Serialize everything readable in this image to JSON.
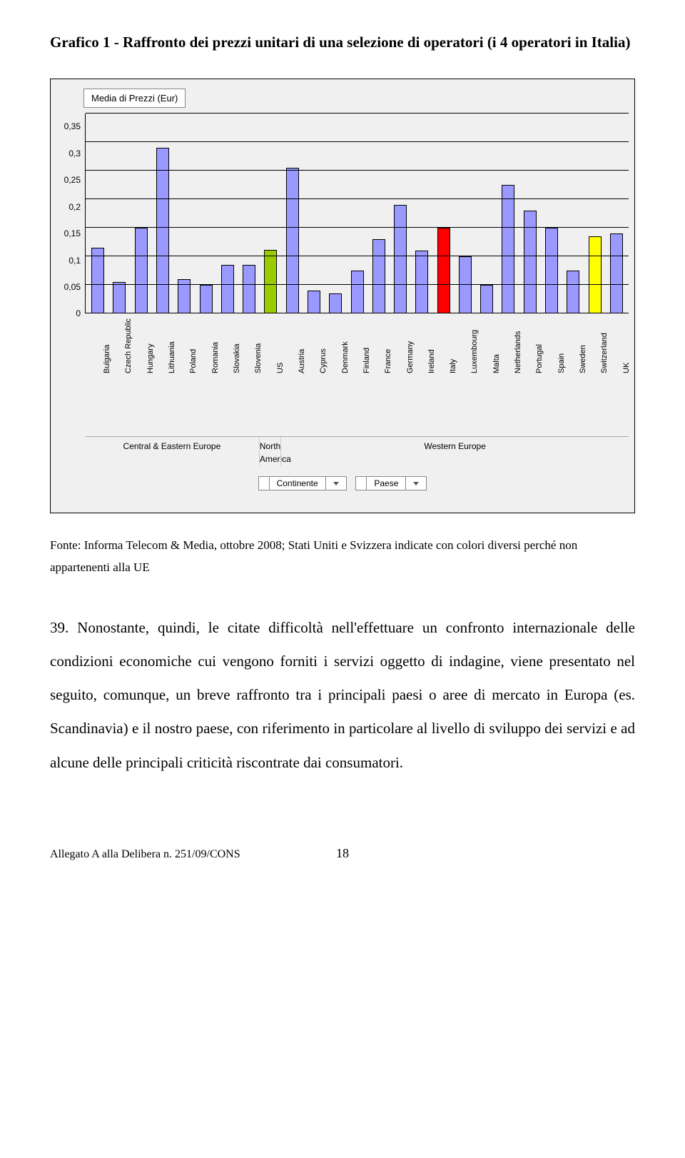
{
  "title": "Grafico 1 - Raffronto dei prezzi unitari di una selezione di operatori (i 4 operatori in Italia)",
  "chart": {
    "legend": "Media di Prezzi (Eur)",
    "ymax": 0.35,
    "yticks": [
      "0",
      "0,05",
      "0,1",
      "0,15",
      "0,2",
      "0,25",
      "0,3",
      "0,35"
    ],
    "default_color": "#9999ff",
    "border_color": "#000000",
    "bars": [
      {
        "label": "Bulgaria",
        "value": 0.115,
        "color": "#9999ff"
      },
      {
        "label": "Czech Republic",
        "value": 0.055,
        "color": "#9999ff"
      },
      {
        "label": "Hungary",
        "value": 0.15,
        "color": "#9999ff"
      },
      {
        "label": "Lithuania",
        "value": 0.29,
        "color": "#9999ff"
      },
      {
        "label": "Poland",
        "value": 0.06,
        "color": "#9999ff"
      },
      {
        "label": "Romania",
        "value": 0.05,
        "color": "#9999ff"
      },
      {
        "label": "Slovakia",
        "value": 0.085,
        "color": "#9999ff"
      },
      {
        "label": "Slovenia",
        "value": 0.085,
        "color": "#9999ff"
      },
      {
        "label": "US",
        "value": 0.112,
        "color": "#99cc00"
      },
      {
        "label": "Austria",
        "value": 0.255,
        "color": "#9999ff"
      },
      {
        "label": "Cyprus",
        "value": 0.04,
        "color": "#9999ff"
      },
      {
        "label": "Denmark",
        "value": 0.035,
        "color": "#9999ff"
      },
      {
        "label": "Finland",
        "value": 0.075,
        "color": "#9999ff"
      },
      {
        "label": "France",
        "value": 0.13,
        "color": "#9999ff"
      },
      {
        "label": "Germany",
        "value": 0.19,
        "color": "#9999ff"
      },
      {
        "label": "Ireland",
        "value": 0.11,
        "color": "#9999ff"
      },
      {
        "label": "Italy",
        "value": 0.15,
        "color": "#ff0000"
      },
      {
        "label": "Luxembourg",
        "value": 0.1,
        "color": "#9999ff"
      },
      {
        "label": "Malta",
        "value": 0.05,
        "color": "#9999ff"
      },
      {
        "label": "Netherlands",
        "value": 0.225,
        "color": "#9999ff"
      },
      {
        "label": "Portugal",
        "value": 0.18,
        "color": "#9999ff"
      },
      {
        "label": "Spain",
        "value": 0.15,
        "color": "#9999ff"
      },
      {
        "label": "Sweden",
        "value": 0.075,
        "color": "#9999ff"
      },
      {
        "label": "Switzerland",
        "value": 0.135,
        "color": "#ffff00"
      },
      {
        "label": "UK",
        "value": 0.14,
        "color": "#9999ff"
      }
    ],
    "regions": [
      {
        "label": "Central & Eastern Europe",
        "span": 8
      },
      {
        "label": "North America",
        "span": 1
      },
      {
        "label": "Western Europe",
        "span": 16
      }
    ],
    "axis_caption": [
      "Continente",
      "Paese"
    ]
  },
  "source": "Fonte: Informa Telecom & Media, ottobre 2008; Stati Uniti e Svizzera indicate con colori diversi perché non appartenenti alla UE",
  "paragraph": "39. Nonostante, quindi, le citate difficoltà nell'effettuare un confronto internazionale delle condizioni economiche cui vengono forniti i servizi oggetto di indagine, viene presentato nel seguito, comunque, un breve raffronto tra i principali paesi o aree di mercato in Europa (es. Scandinavia) e il nostro paese, con riferimento in particolare al livello di sviluppo dei servizi e ad alcune delle principali criticità riscontrate dai consumatori.",
  "footer_left": "Allegato A alla Delibera n. 251/09/CONS",
  "footer_page": "18"
}
